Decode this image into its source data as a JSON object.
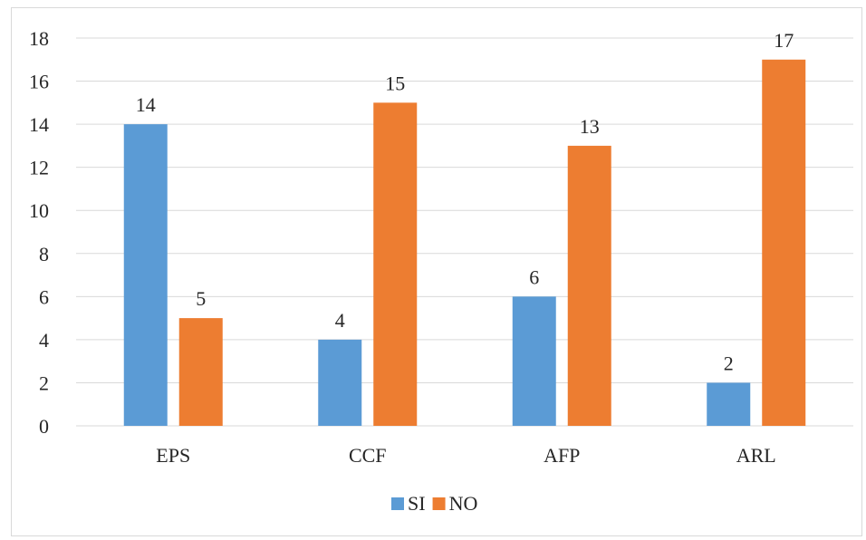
{
  "chart_data": {
    "type": "bar",
    "categories": [
      "EPS",
      "CCF",
      "AFP",
      "ARL"
    ],
    "series": [
      {
        "name": "SI",
        "values": [
          14,
          4,
          6,
          2
        ],
        "color": "#5b9bd5"
      },
      {
        "name": "NO",
        "values": [
          5,
          15,
          13,
          17
        ],
        "color": "#ed7d31"
      }
    ],
    "ylim": [
      0,
      18
    ],
    "yticks": [
      0,
      2,
      4,
      6,
      8,
      10,
      12,
      14,
      16,
      18
    ],
    "grid": true,
    "legend_position": "bottom",
    "data_labels": true
  }
}
